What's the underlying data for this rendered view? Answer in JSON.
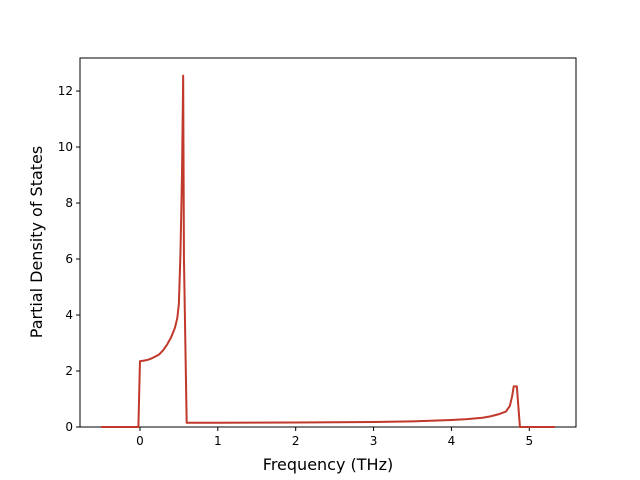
{
  "chart_data": {
    "type": "line",
    "xlabel": "Frequency (THz)",
    "ylabel": "Partial Density of States",
    "x": [
      -0.5,
      -0.02,
      0.0,
      0.05,
      0.1,
      0.15,
      0.2,
      0.25,
      0.3,
      0.35,
      0.4,
      0.45,
      0.48,
      0.5,
      0.52,
      0.54,
      0.555,
      0.565,
      0.6,
      1.0,
      2.0,
      2.5,
      3.0,
      3.5,
      4.0,
      4.2,
      4.4,
      4.5,
      4.6,
      4.7,
      4.75,
      4.78,
      4.8,
      4.84,
      4.88,
      5.33
    ],
    "series": [
      {
        "color": "#c0392b",
        "values": [
          0,
          0,
          2.35,
          2.37,
          2.4,
          2.45,
          2.52,
          2.6,
          2.75,
          2.95,
          3.2,
          3.55,
          3.9,
          4.4,
          6.2,
          9.0,
          12.55,
          6.0,
          0.15,
          0.15,
          0.16,
          0.17,
          0.18,
          0.2,
          0.25,
          0.28,
          0.33,
          0.38,
          0.45,
          0.55,
          0.75,
          1.1,
          1.45,
          1.45,
          0,
          0
        ]
      }
    ],
    "xlim": [
      -0.77,
      5.6
    ],
    "ylim": [
      0,
      13.18
    ],
    "xticks": [
      0,
      1,
      2,
      3,
      4,
      5
    ],
    "yticks": [
      0,
      2,
      4,
      6,
      8,
      10,
      12
    ]
  }
}
